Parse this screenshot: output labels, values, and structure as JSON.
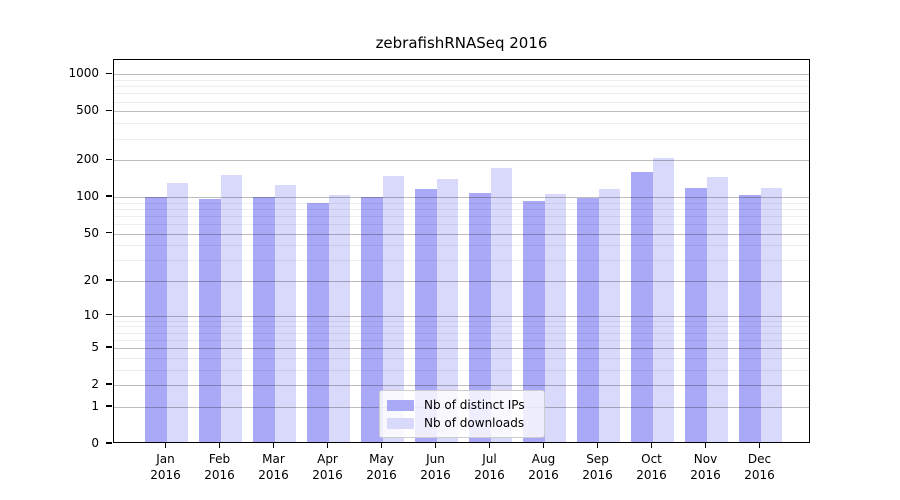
{
  "chart_data": {
    "type": "bar",
    "title": "zebrafishRNASeq 2016",
    "categories": [
      "Jan",
      "Feb",
      "Mar",
      "Apr",
      "May",
      "Jun",
      "Jul",
      "Aug",
      "Sep",
      "Oct",
      "Nov",
      "Dec"
    ],
    "x_year": "2016",
    "series": [
      {
        "name": "Nb of distinct IPs",
        "color": "#a9a9f7",
        "values": [
          96,
          93,
          97,
          87,
          96,
          112,
          105,
          90,
          94,
          154,
          115,
          101
        ]
      },
      {
        "name": "Nb of downloads",
        "color": "#d9d9fb",
        "values": [
          125,
          147,
          120,
          100,
          144,
          135,
          166,
          103,
          112,
          202,
          141,
          114
        ]
      }
    ],
    "y_axis": {
      "scale": "log1p",
      "ticks": [
        0,
        1,
        2,
        5,
        10,
        20,
        50,
        100,
        200,
        500,
        1000
      ],
      "minor_ticks": [
        3,
        4,
        6,
        7,
        8,
        9,
        30,
        40,
        60,
        70,
        80,
        90,
        300,
        400,
        600,
        700,
        800,
        900
      ],
      "ylim": [
        0,
        1310
      ]
    },
    "legend": {
      "position": "inside-bottom-center",
      "entries": [
        "Nb of distinct IPs",
        "Nb of downloads"
      ]
    },
    "grid": true
  },
  "colors": {
    "background": "#ffffff",
    "axis": "#000000",
    "major_grid": "#bdbdbd",
    "minor_grid": "#ededed",
    "distinct_ips_bar": "#a9a9f7",
    "downloads_bar": "#d9d9fb",
    "legend_border": "#cccccc"
  }
}
